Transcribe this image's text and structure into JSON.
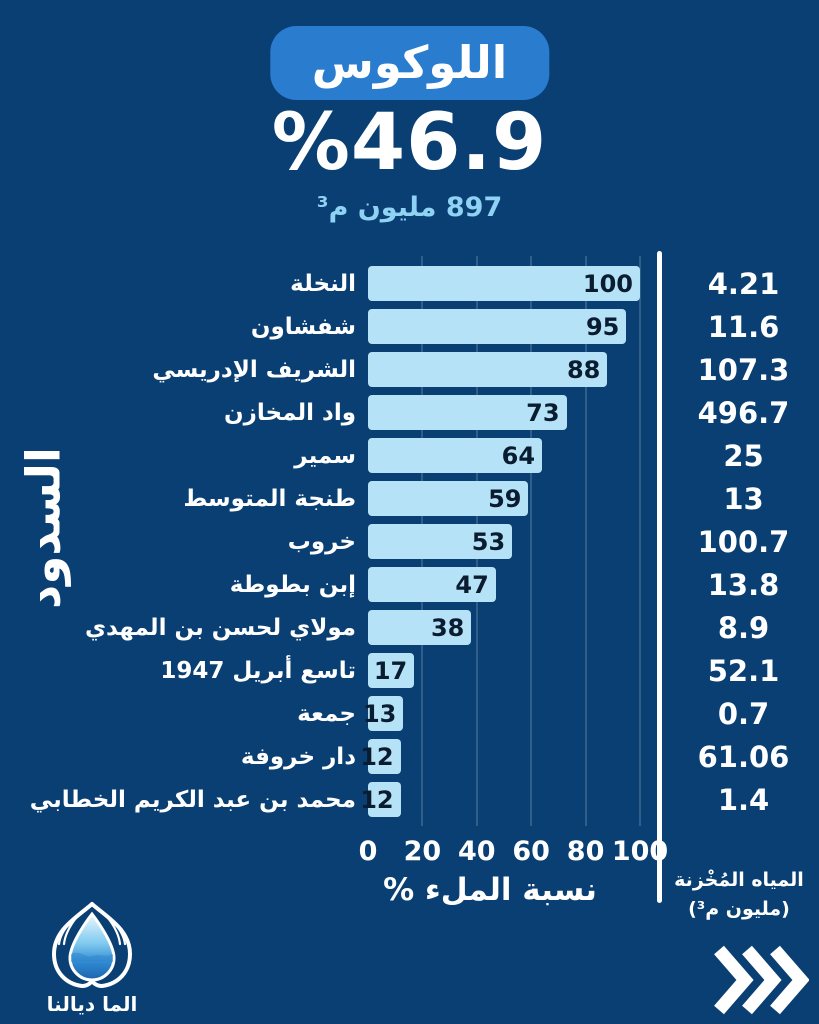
{
  "header": {
    "basin_name": "اللوكوس",
    "fill_percent_display": "%46.9",
    "stored_volume_total": "897 مليون م³"
  },
  "chart_data": {
    "type": "bar",
    "orientation": "horizontal",
    "title": "اللوكوس",
    "categories": [
      "النخلة",
      "شفشاون",
      "الشريف الإدريسي",
      "واد المخازن",
      "سمير",
      "طنجة المتوسط",
      "خروب",
      "إبن بطوطة",
      "مولاي لحسن بن المهدي",
      "تاسع أبريل 1947",
      "جمعة",
      "دار خروفة",
      "محمد بن عبد الكريم الخطابي"
    ],
    "series": [
      {
        "name": "نسبة الملء %",
        "values": [
          100,
          95,
          88,
          73,
          64,
          59,
          53,
          47,
          38,
          17,
          13,
          12,
          12
        ]
      },
      {
        "name": "المياه المُخْزنة (مليون م³)",
        "values": [
          4.21,
          11.6,
          107.3,
          496.7,
          25,
          13,
          100.7,
          13.8,
          8.9,
          52.1,
          0.7,
          61.06,
          1.4
        ]
      }
    ],
    "xlabel": "نسبة الملء %",
    "ylabel": "السدود",
    "x_ticks": [
      0,
      20,
      40,
      60,
      80,
      100
    ],
    "xlim": [
      0,
      100
    ],
    "grid": true,
    "bar_color": "#B6E2F8",
    "background_color": "#0A3F73"
  },
  "right_column": {
    "header_line1": "المياه المُخْزنة",
    "header_line2": "(مليون م³)"
  },
  "footer": {
    "brand": "الما ديالنا"
  },
  "icons": {
    "chevrons": "next-chevrons-icon",
    "logo": "water-drop-logo"
  },
  "colors": {
    "background": "#0A3F73",
    "badge": "#2A7CCF",
    "bar_fill": "#B6E2F8",
    "bar_value_text": "#0A1C30",
    "subtitle": "#8FD2F4",
    "text": "#FFFFFF"
  }
}
